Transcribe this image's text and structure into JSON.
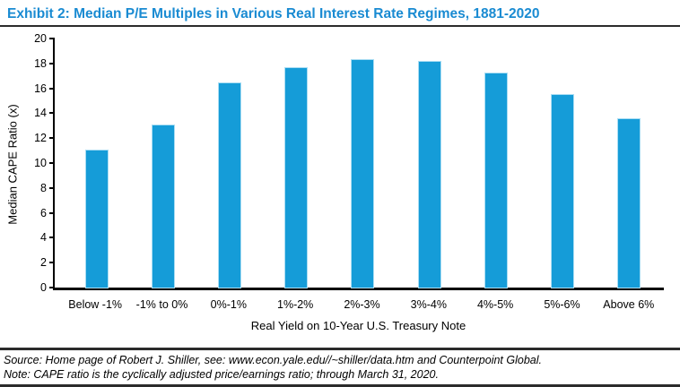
{
  "header": {
    "title": "Exhibit 2: Median P/E Multiples in Various Real Interest Rate Regimes, 1881-2020"
  },
  "chart_data": {
    "type": "bar",
    "title": "Exhibit 2: Median P/E Multiples in Various Real Interest Rate Regimes, 1881-2020",
    "categories": [
      "Below -1%",
      "-1% to 0%",
      "0%-1%",
      "1%-2%",
      "2%-3%",
      "3%-4%",
      "4%-5%",
      "5%-6%",
      "Above 6%"
    ],
    "values": [
      11.0,
      13.0,
      16.4,
      17.6,
      18.3,
      18.1,
      17.2,
      15.5,
      13.5
    ],
    "xlabel": "Real Yield on 10-Year U.S. Treasury Note",
    "ylabel": "Median CAPE Ratio (x)",
    "ylim": [
      0,
      20
    ],
    "yticks": [
      0,
      2,
      4,
      6,
      8,
      10,
      12,
      14,
      16,
      18,
      20
    ],
    "grid": false,
    "legend": false
  },
  "footer": {
    "source": "Source: Home page of Robert J. Shiller, see: www.econ.yale.edu//~shiller/data.htm and Counterpoint Global.",
    "note": "Note: CAPE ratio is the cyclically adjusted price/earnings ratio; through March 31, 2020."
  },
  "colors": {
    "bar": "#159CD8",
    "bar_edge": "#A9DDF3",
    "title": "#1A8BD2",
    "axis": "#000000",
    "rule": "#2B2B2B"
  }
}
